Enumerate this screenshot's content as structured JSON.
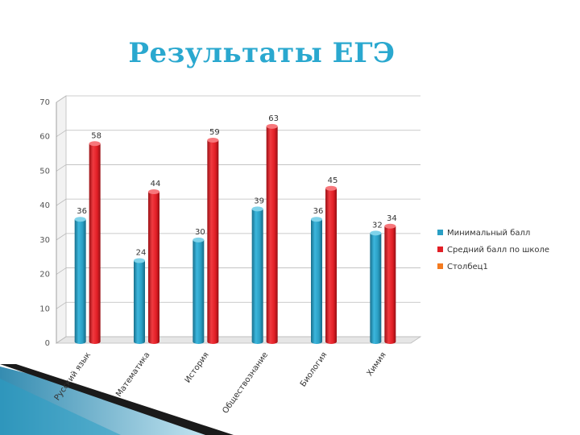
{
  "title": "Результаты ЕГЭ",
  "chart_data": {
    "type": "bar",
    "categories": [
      "Русский язык",
      "Математика",
      "История",
      "Обществознание",
      "Биология",
      "Химия"
    ],
    "series": [
      {
        "name": "Минимальный балл",
        "color": "#2a9fc4",
        "values": [
          36,
          24,
          30,
          39,
          36,
          32
        ]
      },
      {
        "name": "Средний балл по школе",
        "color": "#e21f26",
        "values": [
          58,
          44,
          59,
          63,
          45,
          34
        ]
      },
      {
        "name": "Столбец1",
        "color": "#f47b20",
        "values": [
          null,
          null,
          null,
          null,
          null,
          null
        ]
      }
    ],
    "yticks": [
      0,
      10,
      20,
      30,
      40,
      50,
      60,
      70
    ],
    "ylim": [
      0,
      70
    ],
    "grid": true,
    "legend_position": "right"
  },
  "decor": {
    "accent": "#2a9fc4",
    "dark": "#1a1a1a"
  }
}
